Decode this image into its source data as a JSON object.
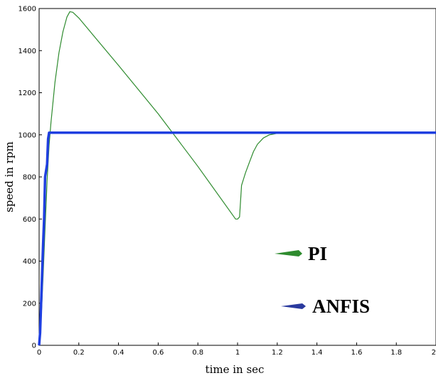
{
  "chart_data": {
    "type": "line",
    "title": "",
    "xlabel": "time in sec",
    "ylabel": "speed in rpm",
    "xlim": [
      0,
      2
    ],
    "ylim": [
      0,
      1600
    ],
    "x_ticks": [
      "0",
      "0.2",
      "0.4",
      "0.6",
      "0.8",
      "1",
      "1.2",
      "1.4",
      "1.6",
      "1.8",
      "2"
    ],
    "y_ticks": [
      "0",
      "200",
      "400",
      "600",
      "800",
      "1000",
      "1200",
      "1400",
      "1600"
    ],
    "grid": false,
    "legend_position": "bottom-right",
    "series": [
      {
        "name": "PI",
        "color": "#2e8b2e",
        "points": [
          [
            0,
            0
          ],
          [
            0.005,
            40
          ],
          [
            0.01,
            120
          ],
          [
            0.02,
            330
          ],
          [
            0.03,
            560
          ],
          [
            0.04,
            780
          ],
          [
            0.05,
            950
          ],
          [
            0.06,
            1060
          ],
          [
            0.08,
            1250
          ],
          [
            0.1,
            1390
          ],
          [
            0.12,
            1490
          ],
          [
            0.14,
            1560
          ],
          [
            0.155,
            1585
          ],
          [
            0.17,
            1582
          ],
          [
            0.2,
            1555
          ],
          [
            0.4,
            1330
          ],
          [
            0.6,
            1100
          ],
          [
            0.8,
            850
          ],
          [
            0.99,
            600
          ],
          [
            1.0,
            600
          ],
          [
            1.01,
            610
          ],
          [
            1.02,
            760
          ],
          [
            1.03,
            790
          ],
          [
            1.04,
            820
          ],
          [
            1.06,
            870
          ],
          [
            1.08,
            920
          ],
          [
            1.1,
            955
          ],
          [
            1.13,
            985
          ],
          [
            1.16,
            1000
          ],
          [
            1.2,
            1007
          ],
          [
            1.3,
            1009
          ],
          [
            1.5,
            1008
          ],
          [
            1.7,
            1009
          ],
          [
            2.0,
            1008
          ]
        ]
      },
      {
        "name": "ANFIS",
        "color": "#1f3fe0",
        "points": [
          [
            0,
            0
          ],
          [
            0.005,
            60
          ],
          [
            0.01,
            200
          ],
          [
            0.02,
            480
          ],
          [
            0.025,
            600
          ],
          [
            0.03,
            800
          ],
          [
            0.04,
            860
          ],
          [
            0.045,
            980
          ],
          [
            0.05,
            1010
          ],
          [
            0.1,
            1010
          ],
          [
            0.5,
            1010
          ],
          [
            1.0,
            1010
          ],
          [
            1.5,
            1010
          ],
          [
            2.0,
            1010
          ]
        ]
      }
    ]
  }
}
